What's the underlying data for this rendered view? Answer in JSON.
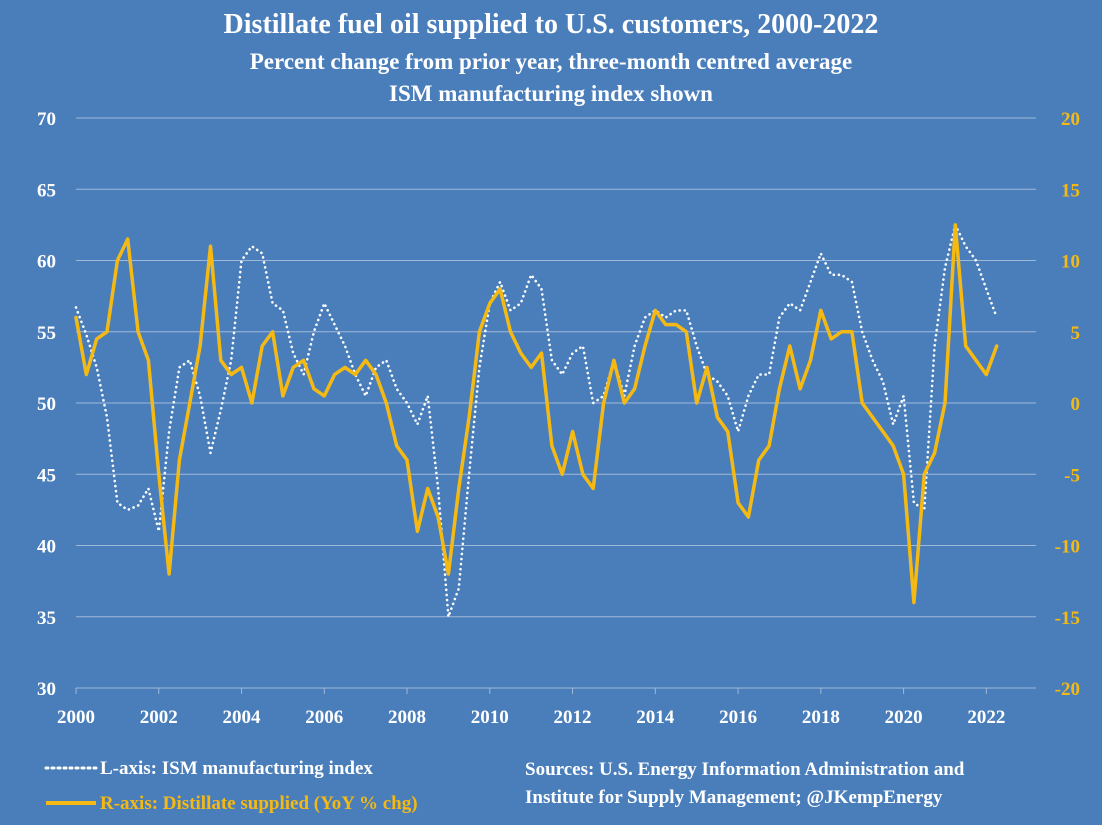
{
  "chart_data": {
    "type": "line",
    "title": "Distillate fuel oil supplied to U.S. customers, 2000-2022",
    "subtitle_1": "Percent change from prior year, three-month centred average",
    "subtitle_2": "ISM manufacturing index shown",
    "x_range": [
      2000,
      2023.2
    ],
    "x_ticks": [
      "2000",
      "2002",
      "2004",
      "2006",
      "2008",
      "2010",
      "2012",
      "2014",
      "2016",
      "2018",
      "2020",
      "2022"
    ],
    "y_left": {
      "range": [
        30,
        70
      ],
      "ticks": [
        "30",
        "35",
        "40",
        "45",
        "50",
        "55",
        "60",
        "65",
        "70"
      ]
    },
    "y_right": {
      "range": [
        -20,
        20
      ],
      "ticks": [
        "-20",
        "-15",
        "-10",
        "-5",
        "0",
        "5",
        "10",
        "15",
        "20"
      ]
    },
    "grid": true,
    "colors": {
      "background": "#4a7ebb",
      "ism": "#ffffff",
      "distillate": "#f5b914",
      "grid": "#9fb8d9"
    },
    "series": [
      {
        "name": "L-axis: ISM manufacturing index",
        "axis": "left",
        "style": "dotted",
        "x": [
          2000.0,
          2000.25,
          2000.5,
          2000.75,
          2001.0,
          2001.25,
          2001.5,
          2001.75,
          2002.0,
          2002.25,
          2002.5,
          2002.75,
          2003.0,
          2003.25,
          2003.5,
          2003.75,
          2004.0,
          2004.25,
          2004.5,
          2004.75,
          2005.0,
          2005.25,
          2005.5,
          2005.75,
          2006.0,
          2006.25,
          2006.5,
          2006.75,
          2007.0,
          2007.25,
          2007.5,
          2007.75,
          2008.0,
          2008.25,
          2008.5,
          2008.75,
          2009.0,
          2009.25,
          2009.5,
          2009.75,
          2010.0,
          2010.25,
          2010.5,
          2010.75,
          2011.0,
          2011.25,
          2011.5,
          2011.75,
          2012.0,
          2012.25,
          2012.5,
          2012.75,
          2013.0,
          2013.25,
          2013.5,
          2013.75,
          2014.0,
          2014.25,
          2014.5,
          2014.75,
          2015.0,
          2015.25,
          2015.5,
          2015.75,
          2016.0,
          2016.25,
          2016.5,
          2016.75,
          2017.0,
          2017.25,
          2017.5,
          2017.75,
          2018.0,
          2018.25,
          2018.5,
          2018.75,
          2019.0,
          2019.25,
          2019.5,
          2019.75,
          2020.0,
          2020.25,
          2020.5,
          2020.75,
          2021.0,
          2021.25,
          2021.5,
          2021.75,
          2022.0,
          2022.25
        ],
        "y": [
          56.7,
          54.8,
          52.5,
          49.0,
          43.0,
          42.5,
          42.8,
          44.0,
          41.0,
          48.0,
          52.5,
          53.0,
          50.5,
          46.5,
          49.5,
          53.0,
          60.0,
          61.0,
          60.5,
          57.0,
          56.5,
          53.5,
          52.0,
          55.0,
          57.0,
          55.5,
          54.0,
          52.0,
          50.5,
          52.5,
          53.0,
          51.0,
          50.0,
          48.5,
          50.5,
          44.0,
          35.0,
          37.0,
          45.0,
          52.5,
          57.0,
          58.5,
          56.5,
          57.0,
          59.0,
          58.0,
          53.0,
          52.0,
          53.5,
          54.0,
          50.0,
          50.5,
          53.0,
          50.5,
          54.0,
          56.0,
          56.5,
          56.0,
          56.5,
          56.5,
          54.0,
          52.0,
          51.5,
          50.5,
          48.0,
          50.5,
          52.0,
          52.0,
          56.0,
          57.0,
          56.5,
          58.5,
          60.5,
          59.0,
          59.0,
          58.5,
          55.0,
          53.0,
          51.5,
          48.5,
          50.5,
          43.0,
          42.5,
          54.0,
          59.5,
          62.5,
          61.0,
          60.0,
          58.0,
          56.0
        ]
      },
      {
        "name": "R-axis: Distillate supplied (YoY % chg)",
        "axis": "right",
        "style": "solid",
        "x": [
          2000.0,
          2000.25,
          2000.5,
          2000.75,
          2001.0,
          2001.25,
          2001.5,
          2001.75,
          2002.0,
          2002.25,
          2002.5,
          2002.75,
          2003.0,
          2003.25,
          2003.5,
          2003.75,
          2004.0,
          2004.25,
          2004.5,
          2004.75,
          2005.0,
          2005.25,
          2005.5,
          2005.75,
          2006.0,
          2006.25,
          2006.5,
          2006.75,
          2007.0,
          2007.25,
          2007.5,
          2007.75,
          2008.0,
          2008.25,
          2008.5,
          2008.75,
          2009.0,
          2009.25,
          2009.5,
          2009.75,
          2010.0,
          2010.25,
          2010.5,
          2010.75,
          2011.0,
          2011.25,
          2011.5,
          2011.75,
          2012.0,
          2012.25,
          2012.5,
          2012.75,
          2013.0,
          2013.25,
          2013.5,
          2013.75,
          2014.0,
          2014.25,
          2014.5,
          2014.75,
          2015.0,
          2015.25,
          2015.5,
          2015.75,
          2016.0,
          2016.25,
          2016.5,
          2016.75,
          2017.0,
          2017.25,
          2017.5,
          2017.75,
          2018.0,
          2018.25,
          2018.5,
          2018.75,
          2019.0,
          2019.25,
          2019.5,
          2019.75,
          2020.0,
          2020.25,
          2020.5,
          2020.75,
          2021.0,
          2021.25,
          2021.5,
          2021.75,
          2022.0,
          2022.25
        ],
        "y": [
          6.0,
          2.0,
          4.5,
          5.0,
          10.0,
          11.5,
          5.0,
          3.0,
          -5.0,
          -12.0,
          -4.0,
          0.0,
          4.0,
          11.0,
          3.0,
          2.0,
          2.5,
          0.0,
          4.0,
          5.0,
          0.5,
          2.5,
          3.0,
          1.0,
          0.5,
          2.0,
          2.5,
          2.0,
          3.0,
          2.0,
          0.0,
          -3.0,
          -4.0,
          -9.0,
          -6.0,
          -8.0,
          -12.0,
          -6.0,
          -1.0,
          5.0,
          7.0,
          8.0,
          5.0,
          3.5,
          2.5,
          3.5,
          -3.0,
          -5.0,
          -2.0,
          -5.0,
          -6.0,
          0.0,
          3.0,
          0.0,
          1.0,
          4.0,
          6.5,
          5.5,
          5.5,
          5.0,
          0.0,
          2.5,
          -1.0,
          -2.0,
          -7.0,
          -8.0,
          -4.0,
          -3.0,
          1.0,
          4.0,
          1.0,
          3.0,
          6.5,
          4.5,
          5.0,
          5.0,
          0.0,
          -1.0,
          -2.0,
          -3.0,
          -5.0,
          -14.0,
          -5.0,
          -3.5,
          0.0,
          12.5,
          4.0,
          3.0,
          2.0,
          4.0
        ]
      }
    ],
    "legend": {
      "placement": "bottom-left",
      "items": [
        {
          "label": "L-axis: ISM manufacturing index",
          "color": "#ffffff",
          "style": "dotted"
        },
        {
          "label": "R-axis: Distillate supplied (YoY % chg)",
          "color": "#f5b914",
          "style": "solid"
        }
      ]
    },
    "sources": [
      "Sources: U.S. Energy Information Administration and",
      "Institute for Supply Management; @JKempEnergy"
    ]
  }
}
